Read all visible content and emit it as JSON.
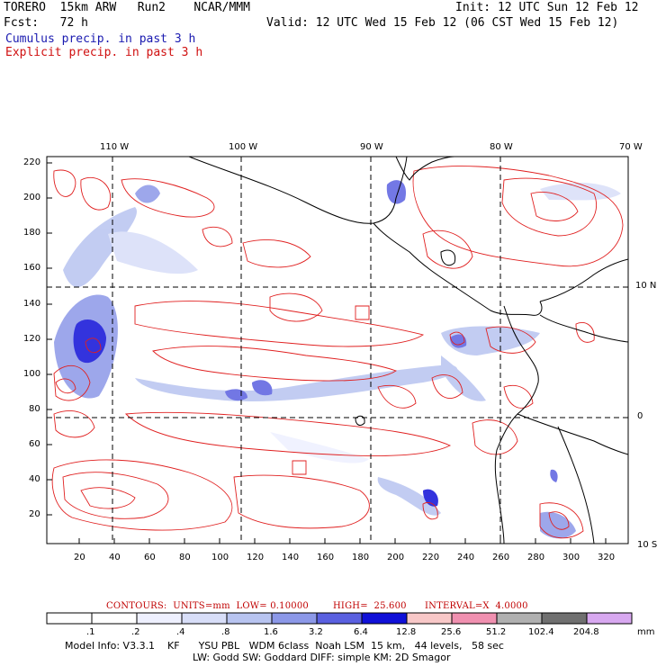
{
  "header": {
    "model": "TORERO  15km ARW   Run2    NCAR/MMM",
    "init": "Init: 12 UTC Sun 12 Feb 12",
    "fcst": "Fcst:   72 h",
    "valid": "Valid: 12 UTC Wed 15 Feb 12 (06 CST Wed 15 Feb 12)",
    "cumulus": "Cumulus precip. in past 3 h",
    "explicit": "Explicit precip. in past 3 h"
  },
  "axes": {
    "top_labels": [
      "110 W",
      "100 W",
      "90 W",
      "80 W",
      "70 W"
    ],
    "right_labels": [
      "10 N",
      "0",
      "10 S"
    ],
    "left_ticks": [
      "220",
      "200",
      "180",
      "160",
      "140",
      "120",
      "100",
      "80",
      "60",
      "40",
      "20"
    ],
    "bottom_ticks": [
      "20",
      "40",
      "60",
      "80",
      "100",
      "120",
      "140",
      "160",
      "180",
      "200",
      "220",
      "240",
      "260",
      "280",
      "300",
      "320"
    ]
  },
  "contours_line": "CONTOURS:  UNITS=mm  LOW= 0.10000        HIGH=  25.600      INTERVAL=X  4.0000",
  "colorbar": {
    "labels": [
      ".1",
      ".2",
      ".4",
      ".8",
      "1.6",
      "3.2",
      "6.4",
      "12.8",
      "25.6",
      "51.2",
      "102.4",
      "204.8"
    ],
    "unit": "mm",
    "colors": [
      "#ffffff",
      "#ffffff",
      "#eef0ff",
      "#d8def8",
      "#b8c4f0",
      "#8c98e8",
      "#5a60e0",
      "#1010d8",
      "#f8c8c8",
      "#f090b0",
      "#b0b0b0",
      "#707070",
      "#d8a8f0"
    ]
  },
  "footer": {
    "line1": "Model Info: V3.3.1    KF      YSU PBL   WDM 6class  Noah LSM  15 km,   44 levels,   58 sec",
    "line2": "LW: Godd SW: Goddard DIFF: simple KM: 2D Smagor"
  },
  "colors": {
    "cumulus_text": "#1a1ab0",
    "explicit_text": "#d01010",
    "contour": "#e02020",
    "coast": "#000000"
  }
}
